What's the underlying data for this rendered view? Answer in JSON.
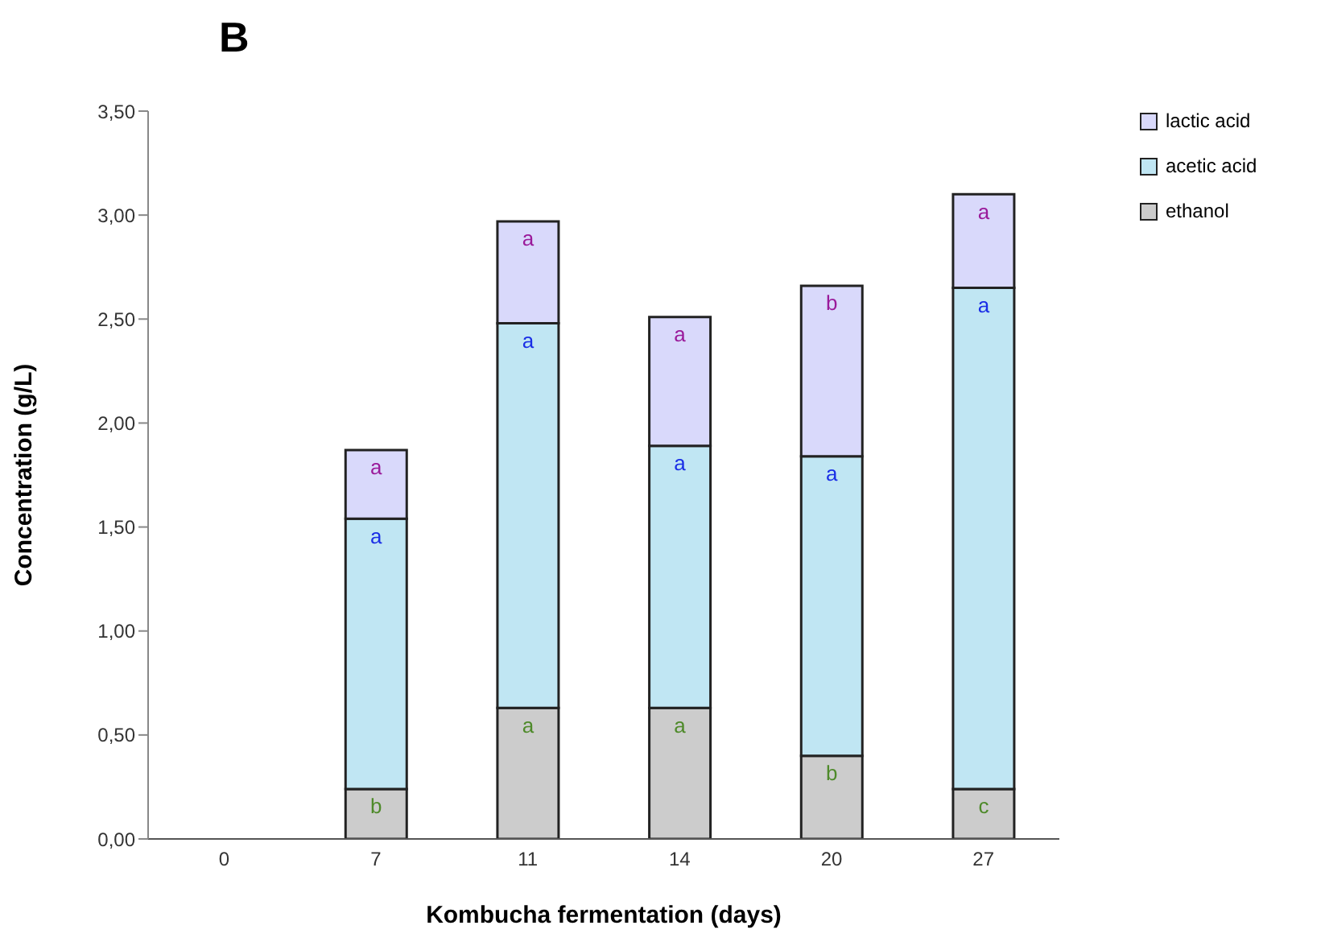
{
  "chart_data": {
    "type": "bar",
    "title": "B",
    "xlabel": "Kombucha fermentation (days)",
    "ylabel": "Concentration (g/L)",
    "categories": [
      "0",
      "7",
      "11",
      "14",
      "20",
      "27"
    ],
    "stacked": true,
    "series": [
      {
        "name": "ethanol",
        "color": "#cccccc",
        "values": [
          0,
          0.24,
          0.63,
          0.63,
          0.4,
          0.24
        ],
        "value_labels": [
          null,
          "b",
          "a",
          "a",
          "b",
          "c"
        ]
      },
      {
        "name": "acetic acid",
        "color": "#c0e6f3",
        "values": [
          0,
          1.3,
          1.85,
          1.26,
          1.44,
          2.41
        ],
        "value_labels": [
          null,
          "a",
          "a",
          "a",
          "a",
          "a"
        ]
      },
      {
        "name": "lactic acid",
        "color": "#d9d9fb",
        "values": [
          0,
          0.33,
          0.49,
          0.62,
          0.82,
          0.45
        ],
        "value_labels": [
          null,
          "a",
          "a",
          "a",
          "b",
          "a"
        ]
      }
    ],
    "ylim": [
      0,
      3.5
    ],
    "yticks": [
      {
        "value": 0,
        "label": "0,00"
      },
      {
        "value": 0.5,
        "label": "0,50"
      },
      {
        "value": 1,
        "label": "1,00"
      },
      {
        "value": 1.5,
        "label": "1,50"
      },
      {
        "value": 2,
        "label": "2,00"
      },
      {
        "value": 2.5,
        "label": "2,50"
      },
      {
        "value": 3,
        "label": "3,00"
      },
      {
        "value": 3.5,
        "label": "3,50"
      }
    ],
    "grid": false,
    "legend": "top right"
  }
}
